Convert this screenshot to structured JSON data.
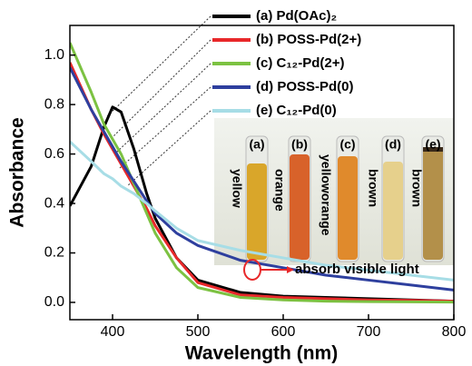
{
  "chart_data": {
    "type": "line",
    "x_label": "Wavelength (nm)",
    "y_label": "Absorbance",
    "x": [
      350,
      375,
      390,
      400,
      410,
      425,
      440,
      450,
      475,
      500,
      550,
      600,
      650,
      700,
      750,
      800
    ],
    "series": [
      {
        "name": "(a) Pd(OAc)₂",
        "color": "#000000",
        "values": [
          0.39,
          0.55,
          0.71,
          0.79,
          0.77,
          0.62,
          0.44,
          0.34,
          0.18,
          0.09,
          0.04,
          0.025,
          0.02,
          0.015,
          0.01,
          0.005
        ]
      },
      {
        "name": "(b) POSS-Pd(2+)",
        "color": "#e8282a",
        "values": [
          0.97,
          0.78,
          0.68,
          0.62,
          0.56,
          0.47,
          0.38,
          0.31,
          0.18,
          0.08,
          0.03,
          0.02,
          0.015,
          0.01,
          0.008,
          0.005
        ]
      },
      {
        "name": "(c) C₁₂-Pd(2+)",
        "color": "#7cc242",
        "values": [
          1.05,
          0.85,
          0.72,
          0.66,
          0.6,
          0.48,
          0.36,
          0.28,
          0.14,
          0.06,
          0.02,
          0.01,
          0.005,
          0.003,
          0.002,
          0.001
        ]
      },
      {
        "name": "(d) POSS-Pd(0)",
        "color": "#2e3f9e",
        "values": [
          0.95,
          0.78,
          0.69,
          0.63,
          0.57,
          0.49,
          0.41,
          0.36,
          0.28,
          0.23,
          0.17,
          0.14,
          0.11,
          0.09,
          0.07,
          0.05
        ]
      },
      {
        "name": "(e) C₁₂-Pd(0)",
        "color": "#a7dde6",
        "values": [
          0.65,
          0.57,
          0.52,
          0.5,
          0.47,
          0.44,
          0.4,
          0.37,
          0.3,
          0.25,
          0.21,
          0.18,
          0.15,
          0.13,
          0.11,
          0.09
        ]
      }
    ],
    "xlim": [
      350,
      800
    ],
    "xticks": [
      400,
      500,
      600,
      700,
      800
    ],
    "ylim": [
      -0.07,
      1.12
    ],
    "yticks": [
      {
        "value": 0,
        "label": "0.0"
      },
      0.2,
      0.4,
      0.6,
      0.8,
      {
        "value": 1,
        "label": "1.0"
      }
    ],
    "annotation": "absorb visible light",
    "inset": {
      "vial_labels": [
        "(a)",
        "(b)",
        "(c)",
        "(d)",
        "(e)"
      ],
      "color_words": [
        "yellow",
        "orange",
        "yelloworange",
        "brown",
        "brown"
      ]
    }
  }
}
